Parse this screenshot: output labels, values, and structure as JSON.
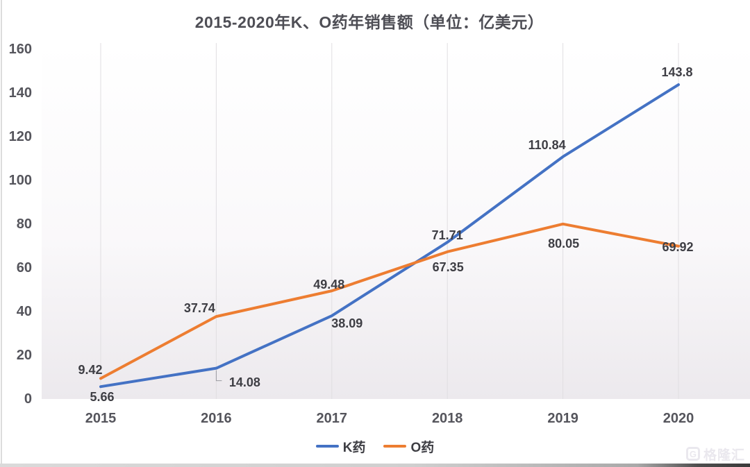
{
  "chart_data": {
    "type": "line",
    "title": "2015-2020年K、O药年销售额（单位：亿美元）",
    "categories": [
      "2015",
      "2016",
      "2017",
      "2018",
      "2019",
      "2020"
    ],
    "series": [
      {
        "name": "K药",
        "color": "#4472c4",
        "values": [
          5.66,
          14.08,
          38.09,
          71.71,
          110.84,
          143.8
        ]
      },
      {
        "name": "O药",
        "color": "#ed7d31",
        "values": [
          9.42,
          37.74,
          49.48,
          67.35,
          80.05,
          69.92
        ]
      }
    ],
    "ylim": [
      0,
      160
    ],
    "ytick_step": 20,
    "yticks": [
      "0",
      "20",
      "40",
      "60",
      "80",
      "100",
      "120",
      "140",
      "160"
    ],
    "xlabel": "",
    "ylabel": "",
    "grid": "vertical-per-category",
    "legend_position": "bottom",
    "gridline_color": "#e0dee1",
    "leader_line_color": "#9a9aa0"
  },
  "watermark": {
    "brand": "格隆汇",
    "icon": "gelonghui-logo"
  }
}
